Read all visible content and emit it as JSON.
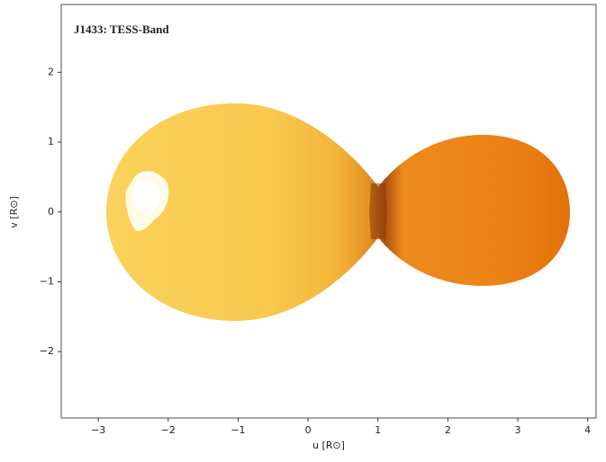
{
  "chart_data": {
    "type": "image",
    "title": "J1433: TESS-Band",
    "x_label": "u [R⊙]",
    "y_label": "v [R⊙]",
    "xlim": [
      -3.53,
      4.12
    ],
    "ylim": [
      -2.95,
      2.97
    ],
    "xticks": [
      {
        "value": -3,
        "label": "−3"
      },
      {
        "value": -2,
        "label": "−2"
      },
      {
        "value": -1,
        "label": "−1"
      },
      0,
      1,
      2,
      3,
      4
    ],
    "yticks": [
      {
        "value": -2,
        "label": "−2"
      },
      {
        "value": -1,
        "label": "−1"
      },
      0,
      1,
      2
    ]
  }
}
